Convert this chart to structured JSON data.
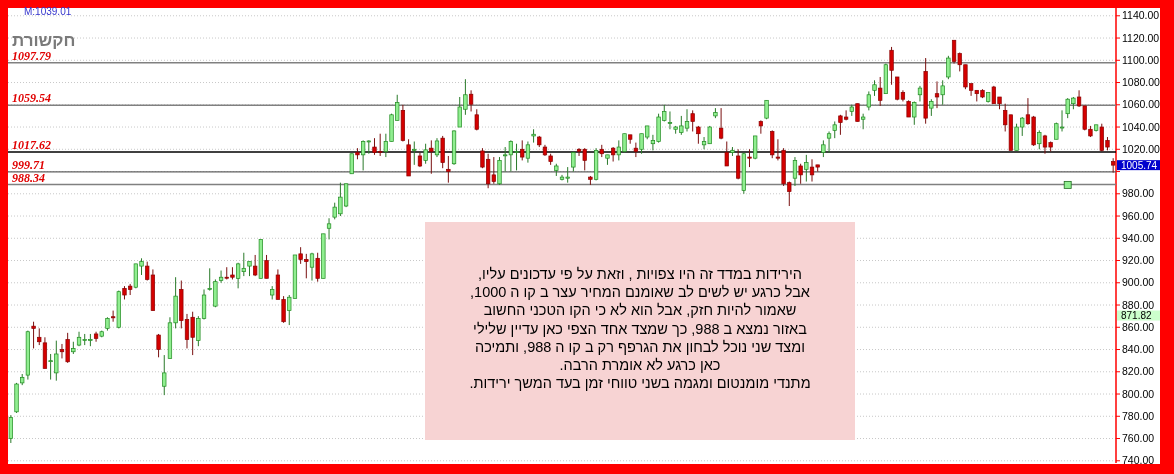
{
  "chart_data": {
    "type": "candlestick",
    "title": "חקשורת",
    "categories": [
      null,
      null,
      null,
      null,
      null,
      null,
      null,
      null,
      null,
      null,
      null,
      null,
      null,
      null,
      null,
      null,
      null,
      null,
      null,
      null,
      null,
      null,
      null,
      null,
      null,
      null,
      null,
      null,
      null,
      null,
      null,
      null,
      null,
      null,
      null,
      null,
      null,
      null,
      null,
      null,
      null,
      null,
      null,
      null,
      null,
      null,
      null,
      null,
      null,
      null,
      null,
      null,
      null,
      null,
      null,
      null,
      null,
      null,
      null,
      null,
      null,
      null,
      null,
      null,
      null,
      null,
      null,
      null,
      null,
      null,
      null,
      null,
      null,
      null,
      null,
      null,
      null,
      null,
      null,
      null,
      null,
      null,
      null,
      null,
      null,
      null,
      null,
      null,
      null,
      null,
      null,
      null,
      null,
      null,
      null,
      null,
      null,
      null,
      null,
      null,
      null,
      null,
      null,
      null,
      null,
      null,
      null,
      null,
      null,
      null,
      null,
      null,
      null,
      null,
      null,
      null,
      null,
      null,
      null,
      null,
      null,
      null,
      null,
      null,
      null,
      null,
      null,
      null,
      null,
      null,
      null,
      null,
      null,
      null,
      null,
      null,
      null,
      null,
      null,
      null,
      null,
      null,
      null,
      null,
      null,
      null,
      null,
      null,
      null,
      null,
      null,
      null,
      null,
      null,
      null,
      null,
      null,
      null,
      null,
      null,
      null,
      null,
      null,
      null,
      null,
      null,
      null,
      null,
      null,
      null,
      null,
      null,
      null,
      null,
      null,
      null,
      null,
      null,
      null,
      null,
      null,
      null,
      null,
      null,
      null,
      null,
      null,
      null,
      null,
      null,
      null,
      null,
      null,
      null,
      null
    ],
    "ohlc": [
      [
        760,
        781,
        756,
        779
      ],
      [
        784,
        810,
        783,
        809
      ],
      [
        810,
        818,
        808,
        815
      ],
      [
        817,
        857,
        813,
        856
      ],
      [
        861,
        865,
        841,
        859
      ],
      [
        851,
        859,
        844,
        847
      ],
      [
        846,
        851,
        823,
        823
      ],
      [
        830,
        836,
        813,
        830
      ],
      [
        819,
        848,
        812,
        836
      ],
      [
        840,
        845,
        832,
        838
      ],
      [
        849,
        855,
        828,
        829
      ],
      [
        838,
        847,
        836,
        841
      ],
      [
        844,
        856,
        843,
        851
      ],
      [
        849,
        854,
        844,
        849
      ],
      [
        849,
        854,
        843,
        849
      ],
      [
        854,
        856,
        847,
        850
      ],
      [
        852,
        857,
        851,
        856
      ],
      [
        859,
        869,
        857,
        868
      ],
      [
        869.5,
        875,
        865,
        868.5
      ],
      [
        860,
        893,
        859,
        892
      ],
      [
        895,
        897,
        885,
        889
      ],
      [
        897,
        899,
        889,
        894
      ],
      [
        896,
        917,
        895,
        917
      ],
      [
        915,
        922,
        907,
        919
      ],
      [
        915,
        919,
        902,
        903
      ],
      [
        907,
        912,
        875,
        875
      ],
      [
        853,
        854,
        833,
        840
      ],
      [
        807,
        835,
        799,
        819
      ],
      [
        832,
        869,
        832,
        864
      ],
      [
        864,
        905,
        859,
        888
      ],
      [
        894,
        902,
        859,
        866
      ],
      [
        867,
        872,
        841,
        849
      ],
      [
        869,
        874,
        835,
        851
      ],
      [
        848,
        870,
        843,
        868
      ],
      [
        868,
        894,
        867,
        889
      ],
      [
        895,
        913,
        893,
        895
      ],
      [
        879,
        903,
        878,
        901
      ],
      [
        902,
        911,
        900,
        905
      ],
      [
        905,
        914,
        903,
        904.5
      ],
      [
        907,
        914,
        903,
        905
      ],
      [
        904,
        918,
        895,
        917
      ],
      [
        910,
        927,
        906,
        913
      ],
      [
        915,
        919,
        906,
        919
      ],
      [
        915,
        925,
        906,
        907
      ],
      [
        904,
        939,
        904,
        939
      ],
      [
        920,
        925,
        904,
        904
      ],
      [
        889,
        897,
        885,
        894
      ],
      [
        907,
        912,
        885,
        885
      ],
      [
        885,
        888,
        864,
        865
      ],
      [
        875,
        889,
        862,
        887
      ],
      [
        886,
        925,
        886,
        925
      ],
      [
        926,
        932,
        917,
        921
      ],
      [
        921,
        926,
        904,
        919
      ],
      [
        914,
        927,
        902,
        926
      ],
      [
        922,
        927,
        901,
        904
      ],
      [
        904,
        944,
        904,
        944
      ],
      [
        949,
        958,
        939,
        953
      ],
      [
        959,
        972,
        957,
        968
      ],
      [
        962,
        990,
        960,
        977
      ],
      [
        969,
        989,
        968,
        989
      ],
      [
        998,
        1016,
        998,
        1016
      ],
      [
        1017,
        1021,
        1011,
        1015
      ],
      [
        1015,
        1028,
        1001,
        1027
      ],
      [
        1027.5,
        1028,
        1016,
        1027.5
      ],
      [
        1022,
        1030,
        1015,
        1017
      ],
      [
        1018,
        1034,
        1014,
        1017.5
      ],
      [
        1018,
        1034,
        1013,
        1027
      ],
      [
        1027,
        1052,
        1027,
        1051
      ],
      [
        1046,
        1069,
        1046,
        1062
      ],
      [
        1055,
        1060,
        1027,
        1028
      ],
      [
        1024,
        1029,
        996,
        996
      ],
      [
        1019,
        1027,
        1006,
        1020
      ],
      [
        1014,
        1017,
        1004,
        1005
      ],
      [
        1010,
        1025,
        1007,
        1019.5
      ],
      [
        1021,
        1028,
        998,
        1018
      ],
      [
        1015,
        1030,
        1013,
        1027.5
      ],
      [
        1030,
        1032,
        1003,
        1008
      ],
      [
        1002,
        1014,
        990,
        1000
      ],
      [
        1007,
        1037,
        1006,
        1036.5
      ],
      [
        1040,
        1067,
        1040,
        1058
      ],
      [
        1056,
        1083,
        1051,
        1069
      ],
      [
        1069.5,
        1073,
        1054,
        1060.5
      ],
      [
        1051,
        1056,
        1037,
        1038
      ],
      [
        1018.5,
        1021,
        1003,
        1004
      ],
      [
        1011,
        1016,
        985,
        989
      ],
      [
        997,
        1013,
        989,
        991
      ],
      [
        989,
        1013,
        988,
        1010
      ],
      [
        1015,
        1022,
        1000,
        1015
      ],
      [
        1015,
        1028,
        1000,
        1027
      ],
      [
        1018,
        1025,
        1001,
        1018
      ],
      [
        1020,
        1028,
        1010,
        1013
      ],
      [
        1012,
        1027,
        1008,
        1024
      ],
      [
        1032,
        1038,
        1026,
        1033.5
      ],
      [
        1031,
        1032,
        1022,
        1024
      ],
      [
        1022,
        1024,
        1014,
        1015
      ],
      [
        1014,
        1016,
        1006,
        1009
      ],
      [
        1001,
        1007,
        996,
        1005
      ],
      [
        993,
        997,
        992,
        995
      ],
      [
        994,
        1004,
        990,
        995
      ],
      [
        1004,
        1018,
        1000,
        1017
      ],
      [
        1020,
        1021,
        1014,
        1018
      ],
      [
        1020,
        1021,
        1001,
        1010
      ],
      [
        995,
        996,
        988,
        993
      ],
      [
        993,
        1021,
        992,
        1019
      ],
      [
        1020,
        1024,
        1013,
        1016
      ],
      [
        1012,
        1015,
        1006,
        1015
      ],
      [
        1021,
        1022,
        1009,
        1015
      ],
      [
        1015,
        1028,
        1010,
        1022
      ],
      [
        1018,
        1034,
        1017,
        1034
      ],
      [
        1033,
        1033,
        1025,
        1029
      ],
      [
        1021,
        1026,
        1013,
        1018
      ],
      [
        1020,
        1034,
        1016,
        1034
      ],
      [
        1031,
        1041,
        1029,
        1041
      ],
      [
        1025,
        1033,
        1019,
        1028
      ],
      [
        1027,
        1052,
        1026,
        1049
      ],
      [
        1046,
        1060,
        1045,
        1054
      ],
      [
        1044,
        1054,
        1038,
        1044
      ],
      [
        1038,
        1041,
        1034,
        1040
      ],
      [
        1035,
        1050,
        1033,
        1041
      ],
      [
        1039,
        1056,
        1036,
        1045
      ],
      [
        1052,
        1055,
        1036,
        1045
      ],
      [
        1040,
        1041,
        1025,
        1034
      ],
      [
        1024,
        1031,
        1020,
        1027
      ],
      [
        1025,
        1041,
        1025,
        1040
      ],
      [
        1050,
        1057,
        1048,
        1053
      ],
      [
        1039,
        1057,
        1029,
        1030
      ],
      [
        1017,
        1027,
        1005,
        1005
      ],
      [
        1017,
        1022,
        1014,
        1019
      ],
      [
        1014,
        1020,
        993,
        994
      ],
      [
        983,
        1017,
        980,
        1016
      ],
      [
        1013,
        1020,
        1004,
        1012
      ],
      [
        1012,
        1032,
        1011,
        1032
      ],
      [
        1045,
        1046,
        1034,
        1041
      ],
      [
        1048,
        1064,
        1047,
        1064
      ],
      [
        1036,
        1037,
        1012,
        1015
      ],
      [
        1013,
        1029,
        1010,
        1012
      ],
      [
        1019,
        1021,
        987,
        989
      ],
      [
        990,
        991,
        969,
        982
      ],
      [
        994,
        1013,
        987,
        1010
      ],
      [
        1005,
        1007,
        989,
        997
      ],
      [
        1002,
        1015,
        991,
        1008
      ],
      [
        1004,
        1011,
        991,
        997
      ],
      [
        1006,
        1006,
        1000,
        1004
      ],
      [
        1017,
        1028,
        1013,
        1024
      ],
      [
        1030,
        1036,
        1017,
        1034
      ],
      [
        1037,
        1045,
        1030,
        1042
      ],
      [
        1050,
        1051,
        1033,
        1044
      ],
      [
        1049,
        1055,
        1046,
        1047
      ],
      [
        1054,
        1060,
        1050,
        1058
      ],
      [
        1061,
        1061,
        1045,
        1045
      ],
      [
        1047,
        1052,
        1038,
        1049
      ],
      [
        1058,
        1072,
        1055,
        1069
      ],
      [
        1073,
        1082,
        1068,
        1078
      ],
      [
        1075,
        1085,
        1059,
        1064
      ],
      [
        1070,
        1097,
        1070,
        1096
      ],
      [
        1109,
        1112,
        1078,
        1091
      ],
      [
        1085,
        1085,
        1064,
        1065
      ],
      [
        1071,
        1073,
        1063,
        1065
      ],
      [
        1063,
        1064,
        1049,
        1049
      ],
      [
        1049,
        1063,
        1042,
        1062
      ],
      [
        1069,
        1077,
        1063,
        1075
      ],
      [
        1090,
        1102,
        1043,
        1048
      ],
      [
        1057,
        1065,
        1050,
        1063
      ],
      [
        1070,
        1081,
        1057,
        1067
      ],
      [
        1069,
        1082,
        1060,
        1077
      ],
      [
        1085,
        1104,
        1083,
        1102
      ],
      [
        1118,
        1118,
        1097,
        1099
      ],
      [
        1106,
        1107,
        1090,
        1096
      ],
      [
        1096,
        1096,
        1074,
        1076
      ],
      [
        1079,
        1079,
        1068,
        1073
      ],
      [
        1073,
        1073,
        1063,
        1070
      ],
      [
        1073,
        1074,
        1066,
        1067
      ],
      [
        1063,
        1071,
        1062,
        1071
      ],
      [
        1076,
        1077,
        1061,
        1061
      ],
      [
        1067,
        1067,
        1056,
        1061
      ],
      [
        1055,
        1061,
        1036,
        1042
      ],
      [
        1051,
        1051,
        1019,
        1019
      ],
      [
        1019,
        1043,
        1019,
        1040
      ],
      [
        1040,
        1049,
        1032,
        1048
      ],
      [
        1051,
        1066,
        1042,
        1043
      ],
      [
        1049,
        1050,
        1023,
        1024
      ],
      [
        1025,
        1037,
        1020,
        1035
      ],
      [
        1032,
        1033,
        1016,
        1022
      ],
      [
        1026,
        1027,
        1018,
        1022
      ],
      [
        1029,
        1044,
        1029,
        1043
      ],
      [
        1040,
        1055,
        1036,
        1040
      ],
      [
        1052,
        1066,
        1048,
        1065
      ],
      [
        1061,
        1067,
        1056,
        1066
      ],
      [
        1067,
        1073,
        1058,
        1059
      ],
      [
        1059,
        1059,
        1037,
        1038
      ],
      [
        1038,
        1041,
        1031,
        1032
      ],
      [
        1037,
        1042,
        1036,
        1042
      ],
      [
        1040,
        1043,
        1018,
        1019
      ],
      [
        1028,
        1031,
        1019,
        1022
      ],
      [
        1009,
        1012,
        999,
        1005.74
      ]
    ],
    "series": [
      {
        "type": "scatter",
        "marker": "square",
        "color": "#90ee90",
        "values": [
          null,
          null,
          null,
          null,
          null,
          null,
          null,
          null,
          null,
          null,
          null,
          null,
          null,
          null,
          null,
          null,
          null,
          null,
          null,
          null,
          null,
          null,
          null,
          null,
          null,
          null,
          null,
          null,
          null,
          null,
          null,
          null,
          null,
          null,
          null,
          null,
          null,
          null,
          null,
          null,
          null,
          null,
          null,
          null,
          null,
          null,
          null,
          null,
          null,
          null,
          null,
          null,
          null,
          null,
          null,
          null,
          null,
          null,
          null,
          null,
          null,
          null,
          null,
          null,
          null,
          null,
          null,
          null,
          null,
          null,
          null,
          null,
          null,
          null,
          null,
          null,
          null,
          null,
          null,
          null,
          null,
          null,
          null,
          null,
          null,
          null,
          null,
          null,
          null,
          null,
          null,
          null,
          null,
          null,
          null,
          null,
          null,
          null,
          null,
          null,
          null,
          null,
          null,
          null,
          null,
          null,
          null,
          null,
          null,
          null,
          null,
          null,
          null,
          null,
          null,
          null,
          null,
          null,
          null,
          null,
          null,
          null,
          null,
          null,
          null,
          null,
          null,
          null,
          null,
          null,
          null,
          null,
          null,
          null,
          null,
          null,
          null,
          null,
          null,
          null,
          null,
          null,
          null,
          null,
          null,
          null,
          null,
          null,
          null,
          null,
          null,
          null,
          null,
          null,
          null,
          null,
          null,
          null,
          null,
          null,
          null,
          null,
          null,
          null,
          null,
          null,
          null,
          null,
          null,
          null,
          null,
          null,
          null,
          null,
          null,
          null,
          null,
          null,
          null,
          null,
          null,
          null,
          null,
          null,
          null,
          null,
          988,
          null,
          null,
          null,
          null,
          null,
          null,
          null,
          null
        ]
      }
    ],
    "ylim": [
      738,
      1147
    ],
    "yticks": [
      {
        "value": 740,
        "label": "740.00"
      },
      {
        "value": 760,
        "label": "760.00"
      },
      {
        "value": 780,
        "label": "780.00"
      },
      {
        "value": 800,
        "label": "800.00"
      },
      {
        "value": 820,
        "label": "820.00"
      },
      {
        "value": 840,
        "label": "840.00"
      },
      {
        "value": 860,
        "label": "860.00"
      },
      {
        "value": 880,
        "label": "880.00"
      },
      {
        "value": 900,
        "label": "900.00"
      },
      {
        "value": 920,
        "label": "920.00"
      },
      {
        "value": 940,
        "label": "940.00"
      },
      {
        "value": 960,
        "label": "960.00"
      },
      {
        "value": 980,
        "label": "980.00"
      },
      {
        "value": 1000,
        "label": null
      },
      {
        "value": 1020,
        "label": "1020.00"
      },
      {
        "value": 1040,
        "label": "1040.00"
      },
      {
        "value": 1060,
        "label": "1060.00"
      },
      {
        "value": 1080,
        "label": "1080.00"
      },
      {
        "value": 1100,
        "label": "1100.00"
      },
      {
        "value": 1120,
        "label": "1120.00"
      },
      {
        "value": 1140,
        "label": "1140.00"
      }
    ],
    "tick_labels": "y",
    "grid": "y",
    "ref_lines": [
      {
        "axis": "y",
        "value": 1097.79,
        "label": "1097.79",
        "color": "#808080"
      },
      {
        "axis": "y",
        "value": 1059.54,
        "label": "1059.54",
        "color": "#808080"
      },
      {
        "axis": "y",
        "value": 1017.62,
        "label": "1017.62",
        "color": "#000000"
      },
      {
        "axis": "y",
        "value": 999.71,
        "label": "999.71",
        "color": "#606060"
      },
      {
        "axis": "y",
        "value": 988.34,
        "label": "988.34",
        "color": "#808080"
      }
    ],
    "annotations": [
      "M:1039.01",
      "הירידות במדד זה היו צפויות , וזאת על פי עדכונים עליו,\nאבל כרגע יש לשים לב שאומנם המחיר עצר ב קו ה 1000,\nשאמור להיות חזק, אבל הוא לא כי הקו הטכני החשוב\nבאזור נמצא ב 988, כך שמצד אחד הצפי כאן עדיין שלילי\nומצד שני נוכל לבחון את הגרפף רק ב קו ה 988, ותמיכה\nכאן כרגע לא אומרת הרבה.\nמתנדי מומנטום ומגמה בשני טווחי זמן בעד המשך ירידות.",
      "1005.74",
      "871.82"
    ]
  }
}
